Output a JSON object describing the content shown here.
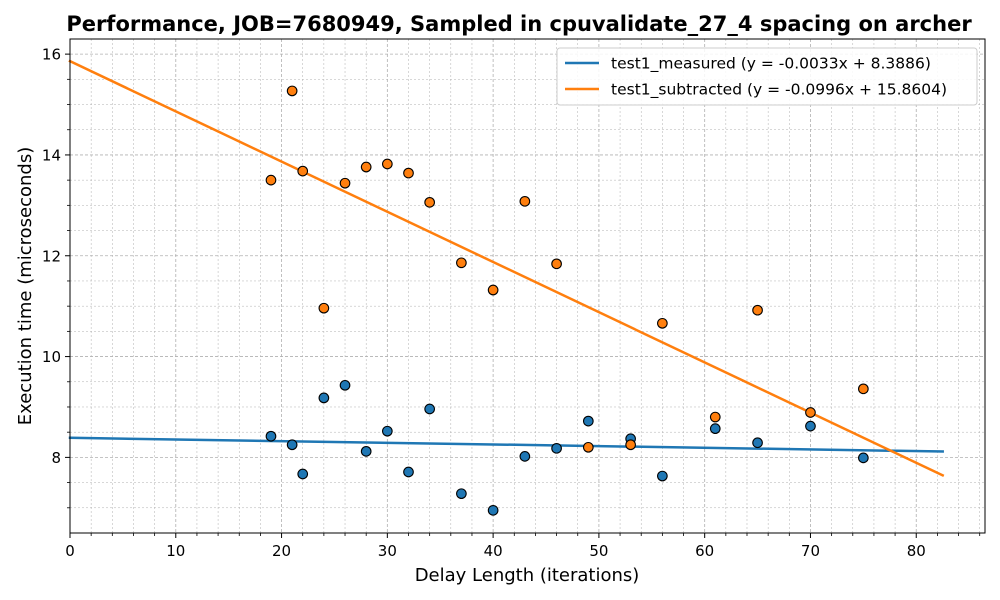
{
  "chart_data": {
    "type": "scatter",
    "title": "Performance, JOB=7680949, Sampled in cpuvalidate_27_4 spacing on archer",
    "xlabel": "Delay Length (iterations)",
    "ylabel": "Execution time (microseconds)",
    "xlim": [
      0,
      86.5
    ],
    "ylim": [
      6.5,
      16.3
    ],
    "x_ticks": [
      0,
      10,
      20,
      30,
      40,
      50,
      60,
      70,
      80
    ],
    "y_ticks": [
      8,
      10,
      12,
      14,
      16
    ],
    "x_tick_labels": [
      "0",
      "10",
      "20",
      "30",
      "40",
      "50",
      "60",
      "70",
      "80"
    ],
    "y_tick_labels": [
      "8",
      "10",
      "12",
      "14",
      "16"
    ],
    "grid": "major and minor, dashed",
    "legend_position": "top-right",
    "series": [
      {
        "name": "test1_measured",
        "legend_label": "test1_measured (y = -0.0033x + 8.3886)",
        "color": "#1f77b4",
        "fit": {
          "slope": -0.0033,
          "intercept": 8.3886,
          "x_range": [
            0,
            82.5
          ]
        },
        "points": [
          [
            19,
            8.42
          ],
          [
            21,
            8.25
          ],
          [
            22,
            7.67
          ],
          [
            24,
            9.18
          ],
          [
            26,
            9.43
          ],
          [
            28,
            8.12
          ],
          [
            30,
            8.52
          ],
          [
            32,
            7.71
          ],
          [
            34,
            8.96
          ],
          [
            37,
            7.28
          ],
          [
            40,
            6.95
          ],
          [
            43,
            8.02
          ],
          [
            46,
            8.18
          ],
          [
            49,
            8.72
          ],
          [
            53,
            8.37
          ],
          [
            56,
            7.63
          ],
          [
            61,
            8.57
          ],
          [
            65,
            8.29
          ],
          [
            70,
            8.62
          ],
          [
            75,
            7.99
          ]
        ]
      },
      {
        "name": "test1_subtracted",
        "legend_label": "test1_subtracted (y = -0.0996x + 15.8604)",
        "color": "#ff7f0e",
        "fit": {
          "slope": -0.0996,
          "intercept": 15.8604,
          "x_range": [
            0,
            82.5
          ]
        },
        "points": [
          [
            19,
            13.5
          ],
          [
            21,
            15.27
          ],
          [
            22,
            13.68
          ],
          [
            24,
            10.96
          ],
          [
            26,
            13.44
          ],
          [
            28,
            13.76
          ],
          [
            30,
            13.82
          ],
          [
            32,
            13.64
          ],
          [
            34,
            13.06
          ],
          [
            37,
            11.86
          ],
          [
            40,
            11.32
          ],
          [
            43,
            13.08
          ],
          [
            46,
            11.84
          ],
          [
            49,
            8.2
          ],
          [
            53,
            8.25
          ],
          [
            56,
            10.66
          ],
          [
            61,
            8.8
          ],
          [
            65,
            10.92
          ],
          [
            70,
            8.89
          ],
          [
            75,
            9.36
          ]
        ]
      }
    ]
  }
}
